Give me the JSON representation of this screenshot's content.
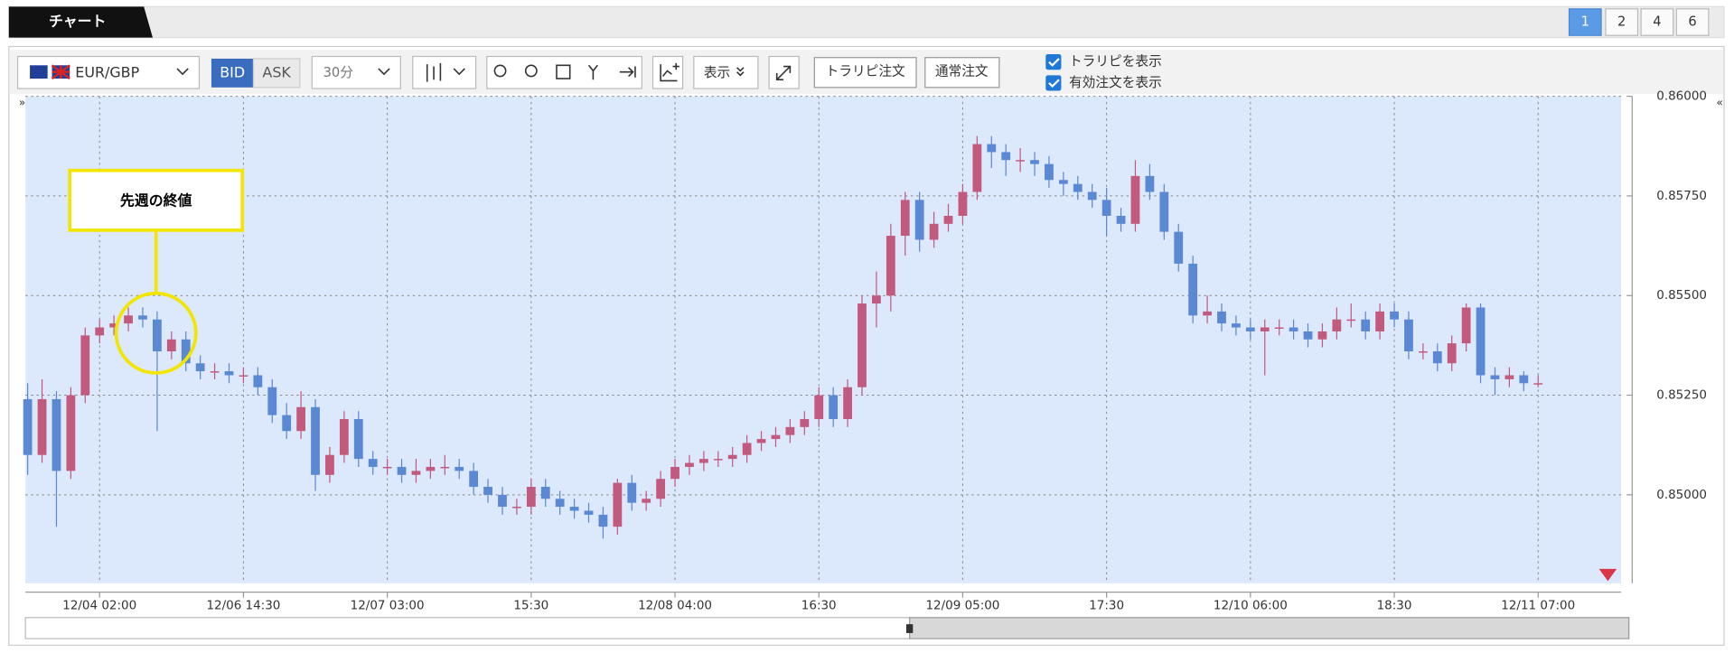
{
  "ui": {
    "tab": "チャート",
    "pages": [
      "1",
      "2",
      "4",
      "6"
    ],
    "pair": "EUR/GBP",
    "bid": "BID",
    "ask": "ASK",
    "interval": "30分",
    "display": "表示",
    "trap_order": "トラリピ注文",
    "normal_order": "通常注文",
    "options": [
      "トラリピを表示",
      "有効注文を表示"
    ]
  },
  "chart_data": {
    "type": "candlestick",
    "annotation": "先週の終値",
    "categories": [
      null,
      null,
      null,
      null,
      null,
      "12/04 02:00",
      null,
      null,
      null,
      null,
      null,
      null,
      null,
      null,
      null,
      "12/06 14:30",
      null,
      null,
      null,
      null,
      null,
      null,
      null,
      null,
      null,
      "12/07 03:00",
      null,
      null,
      null,
      null,
      null,
      null,
      null,
      null,
      null,
      "15:30",
      null,
      null,
      null,
      null,
      null,
      null,
      null,
      null,
      null,
      "12/08 04:00",
      null,
      null,
      null,
      null,
      null,
      null,
      null,
      null,
      null,
      "16:30",
      null,
      null,
      null,
      null,
      null,
      null,
      null,
      null,
      null,
      "12/09 05:00",
      null,
      null,
      null,
      null,
      null,
      null,
      null,
      null,
      null,
      "17:30",
      null,
      null,
      null,
      null,
      null,
      null,
      null,
      null,
      null,
      "12/10 06:00",
      null,
      null,
      null,
      null,
      null,
      null,
      null,
      null,
      null,
      "18:30",
      null,
      null,
      null,
      null,
      null,
      null,
      null,
      null,
      null,
      "12/11 07:00"
    ],
    "open": [
      0.8524,
      0.851,
      0.8524,
      0.8506,
      0.8525,
      0.854,
      0.8542,
      0.8543,
      0.8545,
      0.8544,
      0.8536,
      0.8539,
      0.8533,
      0.8531,
      0.8531,
      0.853,
      0.853,
      0.8527,
      0.852,
      0.8516,
      0.8522,
      0.8505,
      0.851,
      0.8519,
      0.8509,
      0.8507,
      0.8507,
      0.8505,
      0.8506,
      0.8507,
      0.8507,
      0.8506,
      0.8502,
      0.85,
      0.8497,
      0.8497,
      0.8502,
      0.8499,
      0.8497,
      0.8496,
      0.8495,
      0.8492,
      0.8503,
      0.8498,
      0.8499,
      0.8504,
      0.8507,
      0.8508,
      0.8509,
      0.8509,
      0.851,
      0.8513,
      0.8514,
      0.8515,
      0.8517,
      0.8519,
      0.8525,
      0.8519,
      0.8527,
      0.8548,
      0.855,
      0.8565,
      0.8574,
      0.8564,
      0.8568,
      0.857,
      0.8576,
      0.8588,
      0.8586,
      0.8584,
      0.8584,
      0.8583,
      0.8579,
      0.8578,
      0.8576,
      0.8574,
      0.857,
      0.8568,
      0.858,
      0.8576,
      0.8566,
      0.8558,
      0.8545,
      0.8546,
      0.8543,
      0.8542,
      0.8541,
      0.8542,
      0.8542,
      0.8541,
      0.8539,
      0.8541,
      0.8544,
      0.8544,
      0.8541,
      0.8546,
      0.8544,
      0.8536,
      0.8536,
      0.8533,
      0.8538,
      0.8547,
      0.853,
      0.8529,
      0.853,
      0.8528
    ],
    "high": [
      0.8528,
      0.8529,
      0.8526,
      0.8527,
      0.8542,
      0.8544,
      0.8545,
      0.8547,
      0.8547,
      0.8546,
      0.8541,
      0.8541,
      0.8535,
      0.8533,
      0.8533,
      0.8532,
      0.8532,
      0.8529,
      0.8523,
      0.8526,
      0.8524,
      0.8512,
      0.8521,
      0.8521,
      0.8511,
      0.8509,
      0.8509,
      0.8509,
      0.8509,
      0.851,
      0.8509,
      0.8508,
      0.8504,
      0.8502,
      0.8499,
      0.8504,
      0.8504,
      0.8501,
      0.8499,
      0.8498,
      0.8497,
      0.8504,
      0.8505,
      0.8501,
      0.8506,
      0.8509,
      0.851,
      0.8511,
      0.8511,
      0.8512,
      0.8515,
      0.8516,
      0.8517,
      0.8519,
      0.8521,
      0.8527,
      0.8527,
      0.8529,
      0.855,
      0.8556,
      0.8568,
      0.8576,
      0.8576,
      0.8571,
      0.8573,
      0.8578,
      0.859,
      0.859,
      0.8588,
      0.8587,
      0.8586,
      0.8585,
      0.8581,
      0.858,
      0.8578,
      0.8577,
      0.8572,
      0.8584,
      0.8583,
      0.8578,
      0.8568,
      0.856,
      0.855,
      0.8548,
      0.8545,
      0.8544,
      0.8544,
      0.8544,
      0.8544,
      0.8543,
      0.8543,
      0.8547,
      0.8548,
      0.8546,
      0.8548,
      0.8548,
      0.8546,
      0.8538,
      0.8538,
      0.854,
      0.8548,
      0.8548,
      0.8532,
      0.8532,
      0.8531,
      0.853
    ],
    "low": [
      0.8505,
      0.8508,
      0.8492,
      0.8504,
      0.8523,
      0.8538,
      0.854,
      0.8541,
      0.8542,
      0.8516,
      0.8534,
      0.8531,
      0.8529,
      0.8529,
      0.8528,
      0.8528,
      0.8525,
      0.8518,
      0.8514,
      0.8514,
      0.8501,
      0.8503,
      0.8508,
      0.8507,
      0.8505,
      0.8505,
      0.8503,
      0.8503,
      0.8504,
      0.8505,
      0.8504,
      0.85,
      0.8498,
      0.8495,
      0.8495,
      0.8495,
      0.8497,
      0.8495,
      0.8494,
      0.8493,
      0.8489,
      0.849,
      0.8496,
      0.8496,
      0.8497,
      0.8502,
      0.8505,
      0.8506,
      0.8507,
      0.8507,
      0.8508,
      0.8511,
      0.8512,
      0.8513,
      0.8515,
      0.8517,
      0.8517,
      0.8517,
      0.8525,
      0.8542,
      0.8546,
      0.856,
      0.8561,
      0.8562,
      0.8566,
      0.8568,
      0.8574,
      0.8582,
      0.858,
      0.8581,
      0.858,
      0.8577,
      0.8575,
      0.8574,
      0.8572,
      0.8565,
      0.8566,
      0.8566,
      0.8574,
      0.8564,
      0.8556,
      0.8543,
      0.8543,
      0.8541,
      0.854,
      0.8539,
      0.853,
      0.854,
      0.8539,
      0.8537,
      0.8537,
      0.8539,
      0.8542,
      0.8539,
      0.8539,
      0.8542,
      0.8534,
      0.8534,
      0.8531,
      0.8531,
      0.8536,
      0.8528,
      0.8525,
      0.8527,
      0.8526,
      0.8527
    ],
    "close": [
      0.851,
      0.8524,
      0.8506,
      0.8525,
      0.854,
      0.8542,
      0.8543,
      0.8545,
      0.8544,
      0.8536,
      0.8539,
      0.8533,
      0.8531,
      0.8531,
      0.853,
      0.853,
      0.8527,
      0.852,
      0.8516,
      0.8522,
      0.8505,
      0.851,
      0.8519,
      0.8509,
      0.8507,
      0.8507,
      0.8505,
      0.8506,
      0.8507,
      0.8507,
      0.8506,
      0.8502,
      0.85,
      0.8497,
      0.8497,
      0.8502,
      0.8499,
      0.8497,
      0.8496,
      0.8495,
      0.8492,
      0.8503,
      0.8498,
      0.8499,
      0.8504,
      0.8507,
      0.8508,
      0.8509,
      0.8509,
      0.851,
      0.8513,
      0.8514,
      0.8515,
      0.8517,
      0.8519,
      0.8525,
      0.8519,
      0.8527,
      0.8548,
      0.855,
      0.8565,
      0.8574,
      0.8564,
      0.8568,
      0.857,
      0.8576,
      0.8588,
      0.8586,
      0.8584,
      0.8584,
      0.8583,
      0.8579,
      0.8578,
      0.8576,
      0.8574,
      0.857,
      0.8568,
      0.858,
      0.8576,
      0.8566,
      0.8558,
      0.8545,
      0.8546,
      0.8543,
      0.8542,
      0.8541,
      0.8542,
      0.8542,
      0.8541,
      0.8539,
      0.8541,
      0.8544,
      0.8544,
      0.8541,
      0.8546,
      0.8544,
      0.8536,
      0.8536,
      0.8533,
      0.8538,
      0.8547,
      0.853,
      0.8529,
      0.853,
      0.8528,
      0.8528
    ],
    "up_color": "#c25a7e",
    "down_color": "#5b88d3",
    "background": "#dce8fb",
    "ylim": [
      0.84778,
      0.86
    ],
    "yticks": [
      {
        "value": 0.85,
        "label": "0.85000"
      },
      {
        "value": 0.8525,
        "label": "0.85250"
      },
      {
        "value": 0.855,
        "label": "0.85500"
      },
      {
        "value": 0.8575,
        "label": "0.85750"
      },
      {
        "value": 0.86,
        "label": "0.86000"
      }
    ],
    "grid": true
  }
}
